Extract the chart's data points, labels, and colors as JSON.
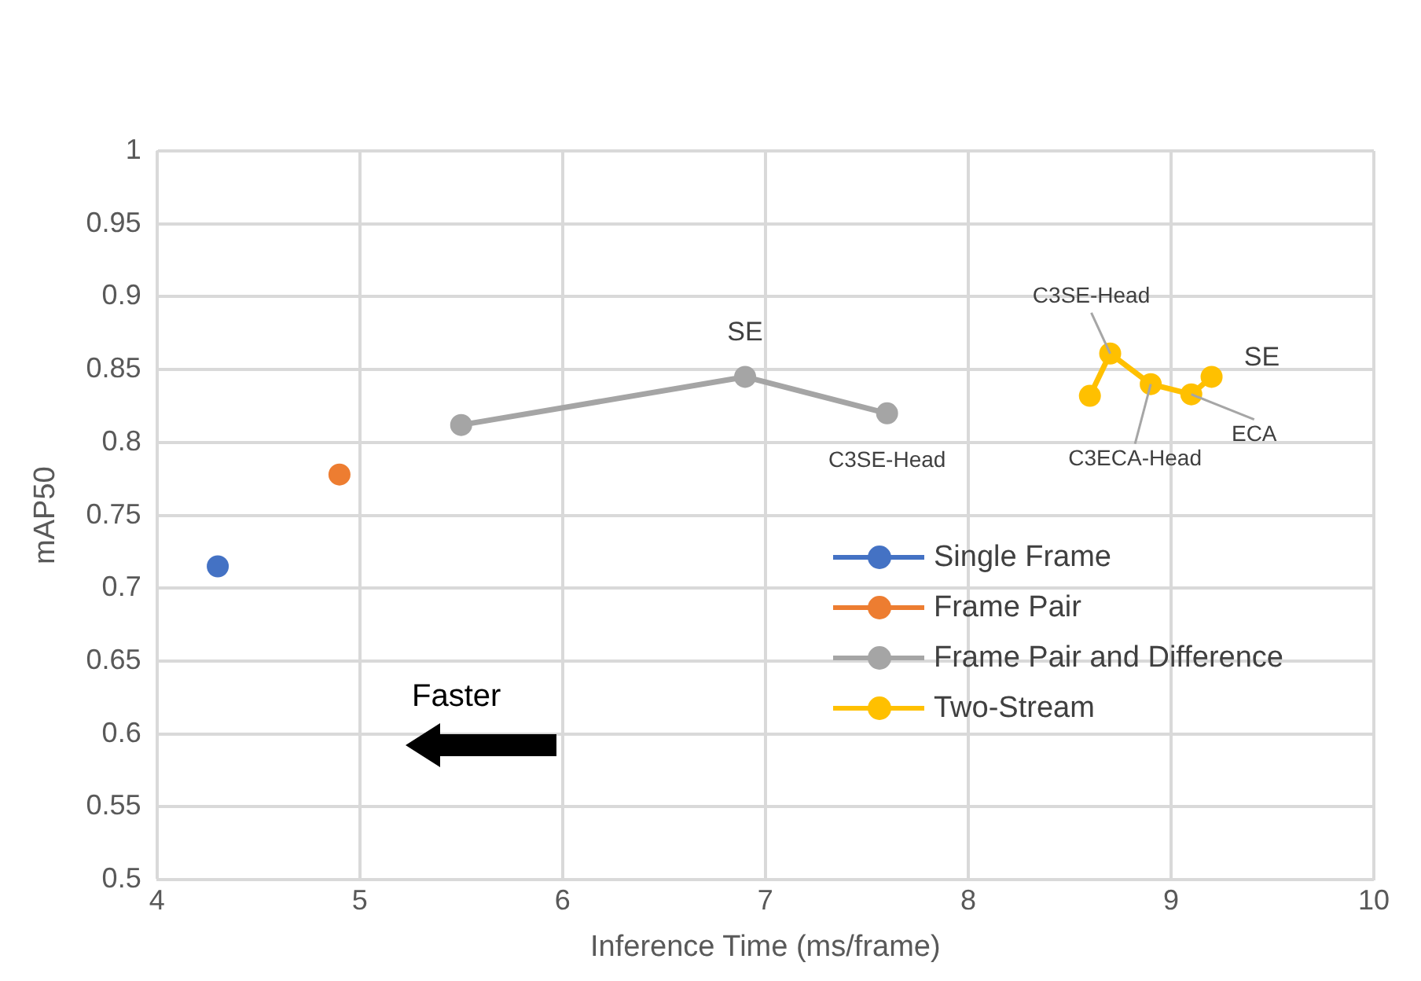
{
  "chart_data": {
    "type": "scatter",
    "xlabel": "Inference Time (ms/frame)",
    "ylabel": "mAP50",
    "xlim": [
      4,
      10
    ],
    "xticks": [
      4,
      5,
      6,
      7,
      8,
      9,
      10
    ],
    "ylim": [
      0.5,
      1
    ],
    "yticks": [
      0.5,
      0.55,
      0.6,
      0.65,
      0.7,
      0.75,
      0.8,
      0.85,
      0.9,
      0.95,
      1
    ],
    "grid": true,
    "legend": "bottom right",
    "marker": "circle",
    "series": [
      {
        "name": "Single Frame",
        "color": "#4472c4",
        "x": [
          4.3
        ],
        "values": [
          0.715
        ]
      },
      {
        "name": "Frame Pair",
        "color": "#ed7d31",
        "x": [
          4.9
        ],
        "values": [
          0.778
        ]
      },
      {
        "name": "Frame Pair and Difference",
        "color": "#a5a5a5",
        "type": "line",
        "x": [
          5.5,
          6.9,
          7.6
        ],
        "values": [
          0.812,
          0.845,
          0.82
        ]
      },
      {
        "name": "Two-Stream",
        "color": "#ffc000",
        "type": "line",
        "x": [
          8.6,
          8.7,
          8.9,
          9.1,
          9.2
        ],
        "values": [
          0.832,
          0.861,
          0.84,
          0.833,
          0.845
        ]
      }
    ],
    "annotations": [
      {
        "text": "SE",
        "x": 6.9,
        "y": 0.845
      },
      {
        "text": "C3SE-Head",
        "x": 7.6,
        "y": 0.82
      },
      {
        "text": "C3SE-Head",
        "x": 8.7,
        "y": 0.861
      },
      {
        "text": "C3ECA-Head",
        "x": 8.9,
        "y": 0.84
      },
      {
        "text": "ECA",
        "x": 9.1,
        "y": 0.833
      },
      {
        "text": "SE",
        "x": 9.2,
        "y": 0.845
      },
      "Faster"
    ]
  }
}
